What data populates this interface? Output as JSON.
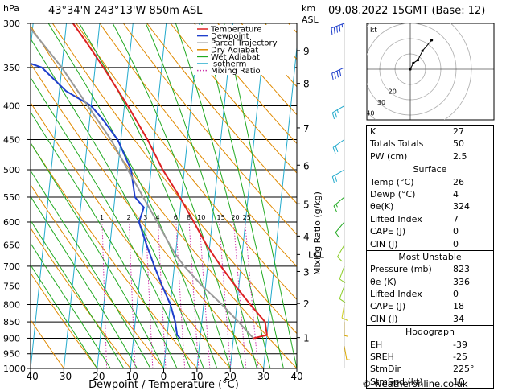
{
  "header": {
    "location": "43°34'N  243°13'W  850m  ASL",
    "datetime": "09.08.2022  15GMT  (Base: 12)",
    "hpa_unit": "hPa",
    "km_unit": "km",
    "asl_unit": "ASL"
  },
  "footer": {
    "credit": "© weatheronline.co.uk"
  },
  "chart_data": {
    "type": "line",
    "title": "",
    "xlabel": "Dewpoint / Temperature (°C)",
    "ylabel_left": "hPa",
    "ylabel_right": "Mixing Ratio (g/kg)",
    "xlim": [
      -40,
      40
    ],
    "ylim": [
      1000,
      300
    ],
    "pressure_ticks": [
      300,
      350,
      400,
      450,
      500,
      550,
      600,
      650,
      700,
      750,
      800,
      850,
      900,
      950,
      1000
    ],
    "temp_ticks": [
      -40,
      -30,
      -20,
      -10,
      0,
      10,
      20,
      30,
      40
    ],
    "km_ticks": [
      {
        "p": 330,
        "label": "9"
      },
      {
        "p": 370,
        "label": "8"
      },
      {
        "p": 432,
        "label": "7"
      },
      {
        "p": 492,
        "label": "6"
      },
      {
        "p": 563,
        "label": "5"
      },
      {
        "p": 630,
        "label": "4"
      },
      {
        "p": 713,
        "label": "3"
      },
      {
        "p": 797,
        "label": "2"
      },
      {
        "p": 898,
        "label": "1"
      }
    ],
    "lcl": {
      "p": 672,
      "label": "LCL"
    },
    "mixing_ratio_labels": [
      "1",
      "2",
      "3",
      "4",
      "6",
      "8",
      "10",
      "15",
      "20",
      "25"
    ],
    "mixing_ratios": [
      1,
      2,
      3,
      4,
      6,
      8,
      10,
      15,
      20,
      25
    ],
    "grid": true,
    "legend": {
      "position": "top-left",
      "entries": [
        {
          "name": "Temperature",
          "color": "#dd2222",
          "style": "solid"
        },
        {
          "name": "Dewpoint",
          "color": "#1f3fcc",
          "style": "solid"
        },
        {
          "name": "Parcel Trajectory",
          "color": "#999999",
          "style": "solid"
        },
        {
          "name": "Dry Adiabat",
          "color": "#e08a00",
          "style": "solid"
        },
        {
          "name": "Wet Adiabat",
          "color": "#22aa22",
          "style": "solid"
        },
        {
          "name": "Isotherm",
          "color": "#22aacc",
          "style": "solid"
        },
        {
          "name": "Mixing Ratio",
          "color": "#cc33aa",
          "style": "dotted"
        }
      ]
    },
    "series": [
      {
        "name": "Temperature",
        "color": "#dd2222",
        "p": [
          900,
          890,
          850,
          800,
          750,
          700,
          650,
          600,
          550,
          500,
          450,
          400,
          350,
          320,
          300
        ],
        "t": [
          26,
          30,
          29,
          24,
          19,
          14,
          9,
          4.5,
          -0.5,
          -6.5,
          -12,
          -19,
          -27.5,
          -33.5,
          -38
        ]
      },
      {
        "name": "Dewpoint",
        "color": "#1f3fcc",
        "p": [
          900,
          890,
          850,
          800,
          750,
          700,
          650,
          600,
          570,
          550,
          500,
          450,
          420,
          400,
          380,
          350,
          335,
          320,
          300
        ],
        "t": [
          4,
          3,
          2,
          0,
          -3,
          -6,
          -9,
          -12,
          -11,
          -14,
          -16,
          -21,
          -26,
          -30,
          -38,
          -46,
          -57,
          -64,
          -75
        ]
      },
      {
        "name": "Parcel Trajectory",
        "color": "#999999",
        "p": [
          900,
          850,
          800,
          750,
          700,
          672,
          650,
          600,
          550,
          500,
          450,
          400,
          350,
          300
        ],
        "t": [
          26,
          21,
          15.5,
          9,
          3,
          0,
          -2,
          -6.5,
          -11.5,
          -17,
          -23,
          -31,
          -40,
          -52
        ]
      }
    ],
    "wind_barbs": [
      {
        "p": 300,
        "dir": 250,
        "kt": 45,
        "color": "#1f3fcc"
      },
      {
        "p": 350,
        "dir": 245,
        "kt": 40,
        "color": "#1f3fcc"
      },
      {
        "p": 400,
        "dir": 240,
        "kt": 25,
        "color": "#22aacc"
      },
      {
        "p": 450,
        "dir": 235,
        "kt": 20,
        "color": "#22aacc"
      },
      {
        "p": 500,
        "dir": 240,
        "kt": 20,
        "color": "#22aacc"
      },
      {
        "p": 550,
        "dir": 230,
        "kt": 15,
        "color": "#22aa22"
      },
      {
        "p": 600,
        "dir": 220,
        "kt": 10,
        "color": "#22aa22"
      },
      {
        "p": 650,
        "dir": 210,
        "kt": 10,
        "color": "#88cc22"
      },
      {
        "p": 700,
        "dir": 200,
        "kt": 10,
        "color": "#88cc22"
      },
      {
        "p": 750,
        "dir": 200,
        "kt": 10,
        "color": "#88cc22"
      },
      {
        "p": 800,
        "dir": 190,
        "kt": 10,
        "color": "#cccc22"
      },
      {
        "p": 850,
        "dir": 180,
        "kt": 5,
        "color": "#ddaa00"
      },
      {
        "p": 925,
        "dir": 170,
        "kt": 5,
        "color": "#ddaa00"
      }
    ],
    "hodograph": {
      "label": "kt",
      "ring_labels": [
        "40",
        "30",
        "20"
      ],
      "points": [
        [
          0,
          0
        ],
        [
          2,
          4
        ],
        [
          5,
          6
        ],
        [
          8,
          12
        ],
        [
          14,
          19
        ]
      ]
    }
  },
  "indices": {
    "basic": [
      {
        "label": "K",
        "value": "27"
      },
      {
        "label": "Totals Totals",
        "value": "50"
      },
      {
        "label": "PW (cm)",
        "value": "2.5"
      }
    ],
    "surface": {
      "title": "Surface",
      "rows": [
        {
          "label": "Temp (°C)",
          "value": "26"
        },
        {
          "label": "Dewp (°C)",
          "value": "4"
        },
        {
          "label": "θe(K)",
          "value": "324"
        },
        {
          "label": "Lifted Index",
          "value": "7"
        },
        {
          "label": "CAPE (J)",
          "value": "0"
        },
        {
          "label": "CIN (J)",
          "value": "0"
        }
      ]
    },
    "most_unstable": {
      "title": "Most Unstable",
      "rows": [
        {
          "label": "Pressure (mb)",
          "value": "823"
        },
        {
          "label": "θe (K)",
          "value": "336"
        },
        {
          "label": "Lifted Index",
          "value": "0"
        },
        {
          "label": "CAPE (J)",
          "value": "18"
        },
        {
          "label": "CIN (J)",
          "value": "34"
        }
      ]
    },
    "hodograph": {
      "title": "Hodograph",
      "rows": [
        {
          "label": "EH",
          "value": "-39"
        },
        {
          "label": "SREH",
          "value": "-25"
        },
        {
          "label": "StmDir",
          "value": "225°"
        },
        {
          "label": "StmSpd (kt)",
          "value": "10"
        }
      ]
    }
  }
}
